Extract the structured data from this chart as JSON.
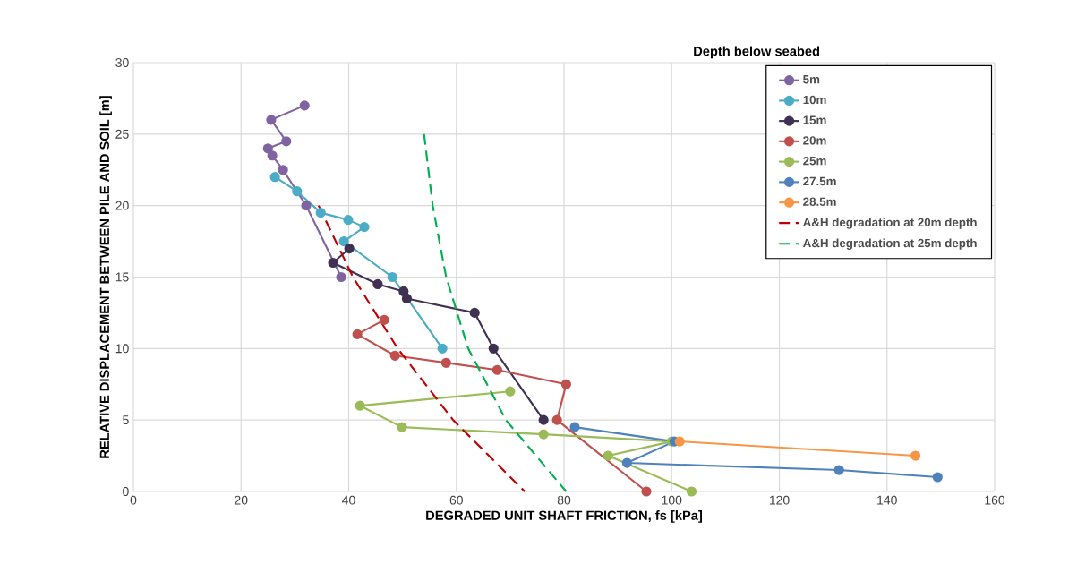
{
  "chart_data": {
    "type": "line",
    "xlabel": "DEGRADED UNIT SHAFT FRICTION, fs [kPa]",
    "ylabel": "RELATIVE DISPLACEMENT BETWEEN PILE AND SOIL [m]",
    "legend_title": "Depth below seabed",
    "legend": "top right",
    "grid": true,
    "marker": "circle",
    "line_style": "solid",
    "xlim": [
      0,
      160
    ],
    "xticks": [
      0,
      20,
      40,
      60,
      80,
      100,
      120,
      140,
      160
    ],
    "ylim": [
      0,
      30
    ],
    "yticks": [
      0,
      5,
      10,
      15,
      20,
      25,
      30
    ],
    "series": [
      {
        "name": "5m",
        "color": "#8064a2",
        "x": [
          31.8,
          25.6,
          28.4,
          25,
          25.8,
          27.8,
          32.1,
          38.6
        ],
        "values": [
          27,
          26,
          24.5,
          24,
          23.5,
          22.5,
          20,
          15
        ]
      },
      {
        "name": "10m",
        "color": "#4bacc6",
        "x": [
          26.3,
          30.4,
          34.8,
          39.9,
          42.9,
          39.1,
          48.1,
          57.4
        ],
        "values": [
          22,
          21,
          19.5,
          19,
          18.5,
          17.5,
          15,
          10
        ]
      },
      {
        "name": "15m",
        "color": "#403152",
        "x": [
          40.1,
          37.1,
          45.4,
          50.2,
          50.8,
          63.4,
          66.9,
          76.2
        ],
        "values": [
          17,
          16,
          14.5,
          14,
          13.5,
          12.5,
          10,
          5
        ]
      },
      {
        "name": "20m",
        "color": "#c0504d",
        "x": [
          46.6,
          41.6,
          48.6,
          58.1,
          67.6,
          80.4,
          78.7,
          95.3
        ],
        "values": [
          12,
          11,
          9.5,
          9,
          8.5,
          7.5,
          5,
          0
        ]
      },
      {
        "name": "25m",
        "color": "#9bbb59",
        "x": [
          70,
          42.1,
          49.9,
          76.2,
          100,
          88.2,
          103.7
        ],
        "values": [
          7,
          6,
          4.5,
          4,
          3.5,
          2.5,
          0
        ]
      },
      {
        "name": "27.5m",
        "color": "#4f81bd",
        "x": [
          82,
          100.5,
          91.7,
          131.1,
          149.4
        ],
        "values": [
          4.5,
          3.5,
          2,
          1.5,
          1
        ]
      },
      {
        "name": "28.5m",
        "color": "#f79646",
        "x": [
          101.5,
          145.3
        ],
        "values": [
          3.5,
          2.5
        ]
      },
      {
        "name": "A&H degradation at 20m depth",
        "color": "#c00000",
        "marker": "none",
        "line_style": "dashed",
        "x": [
          34.4,
          40.8,
          49.1,
          59.4,
          72.7
        ],
        "values": [
          20,
          15,
          10,
          5,
          0
        ]
      },
      {
        "name": "A&H degradation at 25m depth",
        "color": "#00b050",
        "marker": "none",
        "line_style": "dashed",
        "x": [
          54,
          55.6,
          58.1,
          62.2,
          69.2,
          80.4
        ],
        "values": [
          25,
          20,
          15,
          10,
          5,
          0
        ]
      }
    ]
  }
}
